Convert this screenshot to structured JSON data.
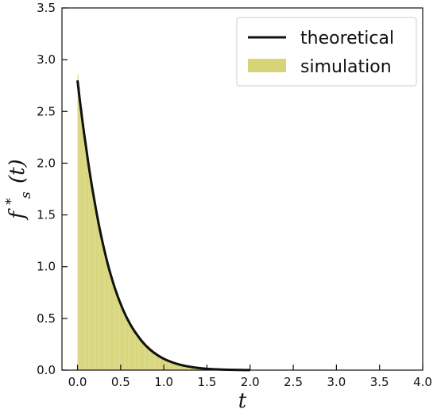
{
  "chart_data": {
    "type": "area",
    "xlabel": "t",
    "ylabel": "f*s(t)",
    "ylabel_parts": {
      "base": "f",
      "sup": "*",
      "sub": "s",
      "arg": "(t)"
    },
    "xlim": [
      -0.18,
      4.0
    ],
    "ylim": [
      0.0,
      3.5
    ],
    "xticks": [
      "0.0",
      "0.5",
      "1.0",
      "1.5",
      "2.0",
      "2.5",
      "3.0",
      "3.5",
      "4.0"
    ],
    "xtick_values": [
      0.0,
      0.5,
      1.0,
      1.5,
      2.0,
      2.5,
      3.0,
      3.5,
      4.0
    ],
    "yticks": [
      "0.0",
      "0.5",
      "1.0",
      "1.5",
      "2.0",
      "2.5",
      "3.0",
      "3.5"
    ],
    "ytick_values": [
      0.0,
      0.5,
      1.0,
      1.5,
      2.0,
      2.5,
      3.0,
      3.5
    ],
    "grid": false,
    "legend_position": "top-right",
    "series": [
      {
        "name": "theoretical",
        "kind": "line",
        "color": "#111111",
        "x": [
          0.0,
          0.1,
          0.2,
          0.3,
          0.4,
          0.5,
          0.6,
          0.7,
          0.8,
          0.9,
          1.0,
          1.1,
          1.2,
          1.3,
          1.4,
          1.5,
          1.6,
          1.7,
          1.8,
          1.9,
          2.0
        ],
        "y": [
          2.8,
          2.15,
          1.62,
          1.2,
          0.88,
          0.64,
          0.46,
          0.33,
          0.23,
          0.16,
          0.11,
          0.075,
          0.05,
          0.033,
          0.021,
          0.013,
          0.008,
          0.005,
          0.003,
          0.0015,
          0.0008
        ]
      },
      {
        "name": "simulation",
        "kind": "histogram",
        "color": "#c9c64a",
        "x": [
          0.0,
          0.1,
          0.2,
          0.3,
          0.4,
          0.5,
          0.6,
          0.7,
          0.8,
          0.9,
          1.0,
          1.1,
          1.2,
          1.3,
          1.4,
          1.5,
          1.6,
          1.7,
          1.8,
          1.9,
          2.0
        ],
        "y": [
          2.9,
          2.18,
          1.64,
          1.22,
          0.9,
          0.66,
          0.48,
          0.35,
          0.25,
          0.18,
          0.12,
          0.085,
          0.06,
          0.04,
          0.026,
          0.016,
          0.01,
          0.006,
          0.003,
          0.0015,
          0.0008
        ]
      }
    ]
  }
}
